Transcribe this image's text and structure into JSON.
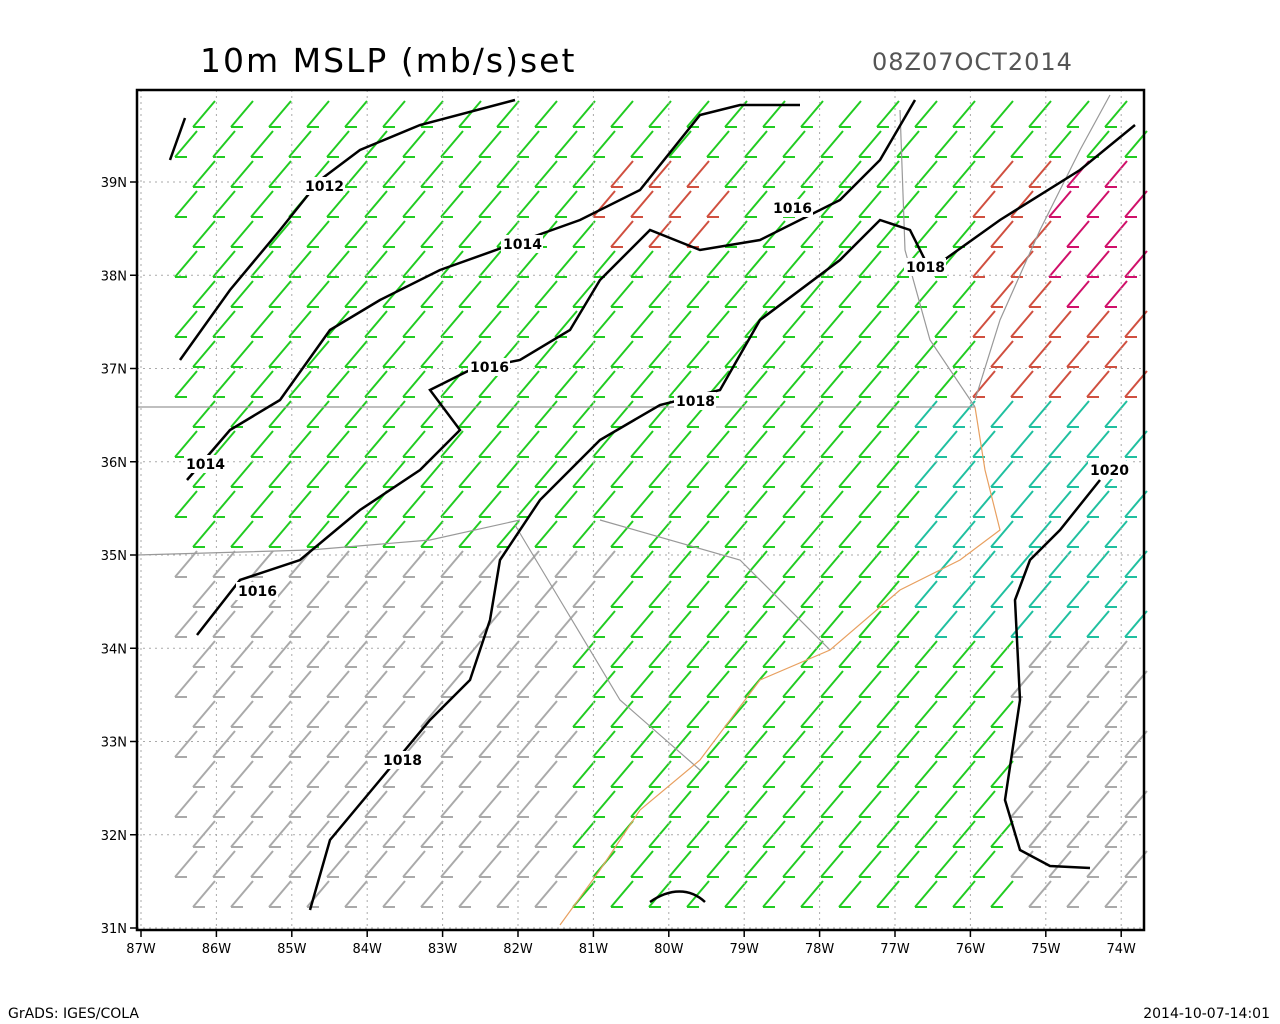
{
  "header": {
    "title": "10m MSLP (mb/s)set",
    "valid_time": "08Z07OCT2014"
  },
  "axes": {
    "x_labels": [
      "87W",
      "86W",
      "85W",
      "84W",
      "83W",
      "82W",
      "81W",
      "80W",
      "79W",
      "78W",
      "77W",
      "76W",
      "75W",
      "74W"
    ],
    "y_labels": [
      "31N",
      "32N",
      "33N",
      "34N",
      "35N",
      "36N",
      "37N",
      "38N",
      "39N"
    ]
  },
  "contour_labels": [
    "1012",
    "1014",
    "1016",
    "1018",
    "1014",
    "1016",
    "1016",
    "1018",
    "1018",
    "1020"
  ],
  "footer": {
    "left": "GrADS: IGES/COLA",
    "right": "2014-10-07-14:01"
  }
}
